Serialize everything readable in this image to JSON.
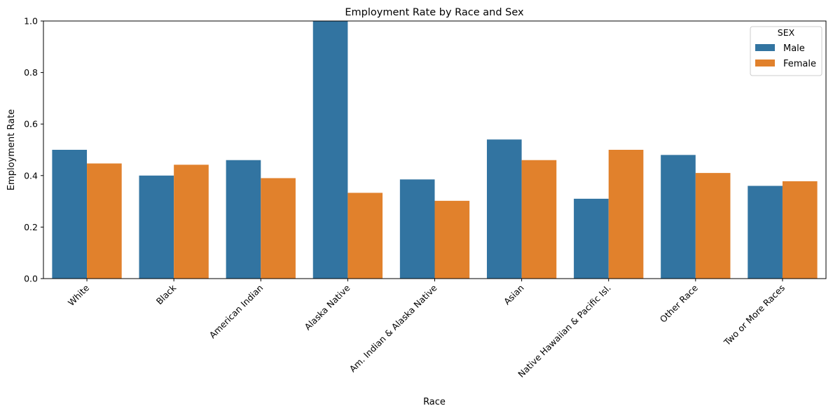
{
  "chart_data": {
    "type": "bar",
    "title": "Employment Rate by Race and Sex",
    "xlabel": "Race",
    "ylabel": "Employment Rate",
    "ylim": [
      0,
      1.0
    ],
    "yticks": [
      "0.0",
      "0.2",
      "0.4",
      "0.6",
      "0.8",
      "1.0"
    ],
    "categories": [
      "White",
      "Black",
      "American Indian",
      "Alaska Native",
      "Am. Indian & Alaska Native",
      "Asian",
      "Native Hawaiian & Pacific Isl.",
      "Other Race",
      "Two or More Races"
    ],
    "legend": {
      "title": "SEX",
      "position": "top-right"
    },
    "series": [
      {
        "name": "Male",
        "color": "#3274a1",
        "values": [
          0.5,
          0.4,
          0.46,
          1.0,
          0.385,
          0.54,
          0.31,
          0.48,
          0.36
        ]
      },
      {
        "name": "Female",
        "color": "#e1812c",
        "values": [
          0.447,
          0.442,
          0.39,
          0.333,
          0.302,
          0.46,
          0.5,
          0.41,
          0.378
        ]
      }
    ]
  }
}
